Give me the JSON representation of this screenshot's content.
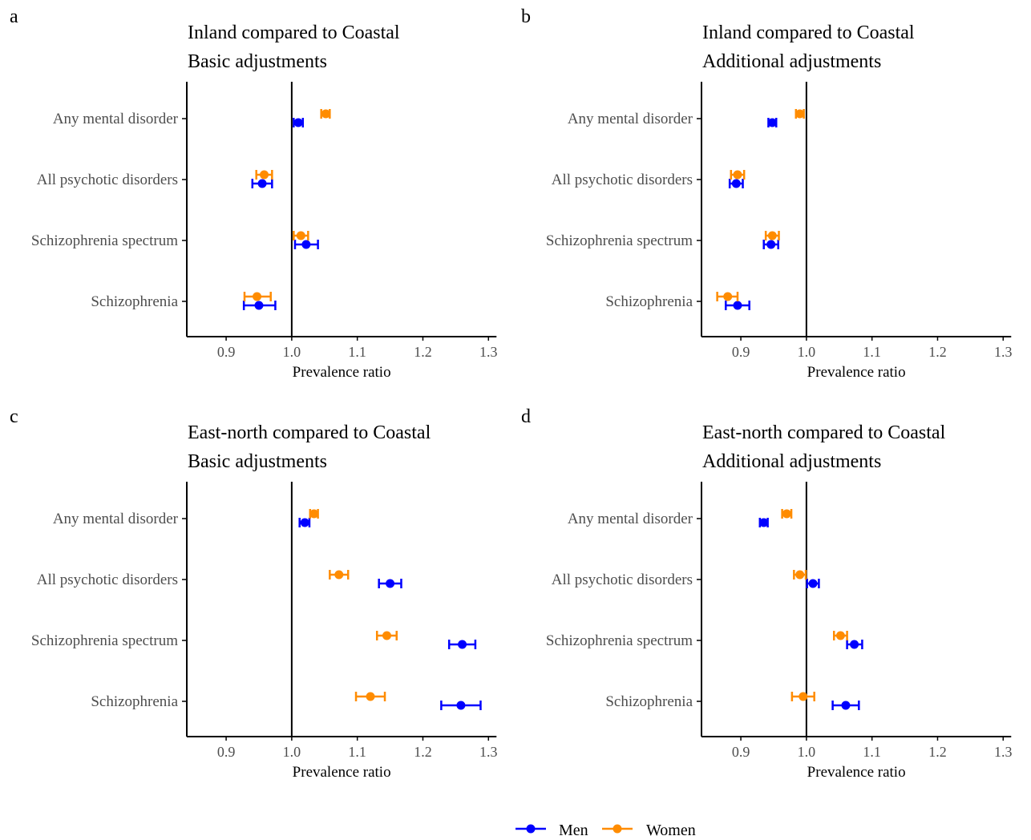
{
  "colors": {
    "men": "#0000FF",
    "women": "#FF8C00",
    "axis": "#000000",
    "text": "#4D4D4D"
  },
  "legend": {
    "men_label": "Men",
    "women_label": "Women",
    "placement": "bottom"
  },
  "chart_data": [
    {
      "type": "forest",
      "panel_letter": "a",
      "title_line1": "Inland compared to Coastal",
      "title_line2": "Basic adjustments",
      "xlabel": "Prevalence ratio",
      "categories": [
        "Any mental disorder",
        "All psychotic disorders",
        "Schizophrenia spectrum",
        "Schizophrenia"
      ],
      "xlim": [
        0.84,
        1.3
      ],
      "xticks": [
        0.9,
        1.0,
        1.1,
        1.2,
        1.3
      ],
      "xtick_labels": [
        "0.9",
        "1.0",
        "1.1",
        "1.2",
        "1.3"
      ],
      "reference_line": 1.0,
      "series": [
        {
          "name": "Men",
          "estimates": [
            1.01,
            0.955,
            1.022,
            0.95
          ],
          "ci_low": [
            1.003,
            0.94,
            1.005,
            0.927
          ],
          "ci_high": [
            1.017,
            0.97,
            1.04,
            0.975
          ]
        },
        {
          "name": "Women",
          "estimates": [
            1.052,
            0.958,
            1.014,
            0.947
          ],
          "ci_low": [
            1.045,
            0.946,
            1.003,
            0.928
          ],
          "ci_high": [
            1.058,
            0.97,
            1.025,
            0.968
          ]
        }
      ]
    },
    {
      "type": "forest",
      "panel_letter": "b",
      "title_line1": "Inland compared to Coastal",
      "title_line2": "Additional adjustments",
      "xlabel": "Prevalence ratio",
      "categories": [
        "Any mental disorder",
        "All psychotic disorders",
        "Schizophrenia spectrum",
        "Schizophrenia"
      ],
      "xlim": [
        0.84,
        1.3
      ],
      "xticks": [
        0.9,
        1.0,
        1.1,
        1.2,
        1.3
      ],
      "xtick_labels": [
        "0.9",
        "1.0",
        "1.1",
        "1.2",
        "1.3"
      ],
      "reference_line": 1.0,
      "series": [
        {
          "name": "Men",
          "estimates": [
            0.948,
            0.893,
            0.946,
            0.895
          ],
          "ci_low": [
            0.942,
            0.883,
            0.935,
            0.877
          ],
          "ci_high": [
            0.954,
            0.903,
            0.957,
            0.913
          ]
        },
        {
          "name": "Women",
          "estimates": [
            0.99,
            0.895,
            0.948,
            0.88
          ],
          "ci_low": [
            0.984,
            0.885,
            0.938,
            0.864
          ],
          "ci_high": [
            0.996,
            0.905,
            0.958,
            0.895
          ]
        }
      ]
    },
    {
      "type": "forest",
      "panel_letter": "c",
      "title_line1": "East-north compared to Coastal",
      "title_line2": "Basic adjustments",
      "xlabel": "Prevalence ratio",
      "categories": [
        "Any mental disorder",
        "All psychotic disorders",
        "Schizophrenia spectrum",
        "Schizophrenia"
      ],
      "xlim": [
        0.84,
        1.3
      ],
      "xticks": [
        0.9,
        1.0,
        1.1,
        1.2,
        1.3
      ],
      "xtick_labels": [
        "0.9",
        "1.0",
        "1.1",
        "1.2",
        "1.3"
      ],
      "reference_line": 1.0,
      "series": [
        {
          "name": "Men",
          "estimates": [
            1.02,
            1.15,
            1.26,
            1.258
          ],
          "ci_low": [
            1.012,
            1.133,
            1.24,
            1.228
          ],
          "ci_high": [
            1.027,
            1.167,
            1.28,
            1.288
          ]
        },
        {
          "name": "Women",
          "estimates": [
            1.034,
            1.072,
            1.145,
            1.12
          ],
          "ci_low": [
            1.028,
            1.058,
            1.13,
            1.098
          ],
          "ci_high": [
            1.04,
            1.086,
            1.16,
            1.142
          ]
        }
      ]
    },
    {
      "type": "forest",
      "panel_letter": "d",
      "title_line1": "East-north compared to Coastal",
      "title_line2": "Additional adjustments",
      "xlabel": "Prevalence ratio",
      "categories": [
        "Any mental disorder",
        "All psychotic disorders",
        "Schizophrenia spectrum",
        "Schizophrenia"
      ],
      "xlim": [
        0.84,
        1.3
      ],
      "xticks": [
        0.9,
        1.0,
        1.1,
        1.2,
        1.3
      ],
      "xtick_labels": [
        "0.9",
        "1.0",
        "1.1",
        "1.2",
        "1.3"
      ],
      "reference_line": 1.0,
      "series": [
        {
          "name": "Men",
          "estimates": [
            0.935,
            1.01,
            1.073,
            1.06
          ],
          "ci_low": [
            0.929,
            1.001,
            1.062,
            1.04
          ],
          "ci_high": [
            0.941,
            1.019,
            1.085,
            1.08
          ]
        },
        {
          "name": "Women",
          "estimates": [
            0.97,
            0.99,
            1.052,
            0.995
          ],
          "ci_low": [
            0.963,
            0.981,
            1.042,
            0.978
          ],
          "ci_high": [
            0.977,
            0.999,
            1.062,
            1.012
          ]
        }
      ]
    }
  ]
}
